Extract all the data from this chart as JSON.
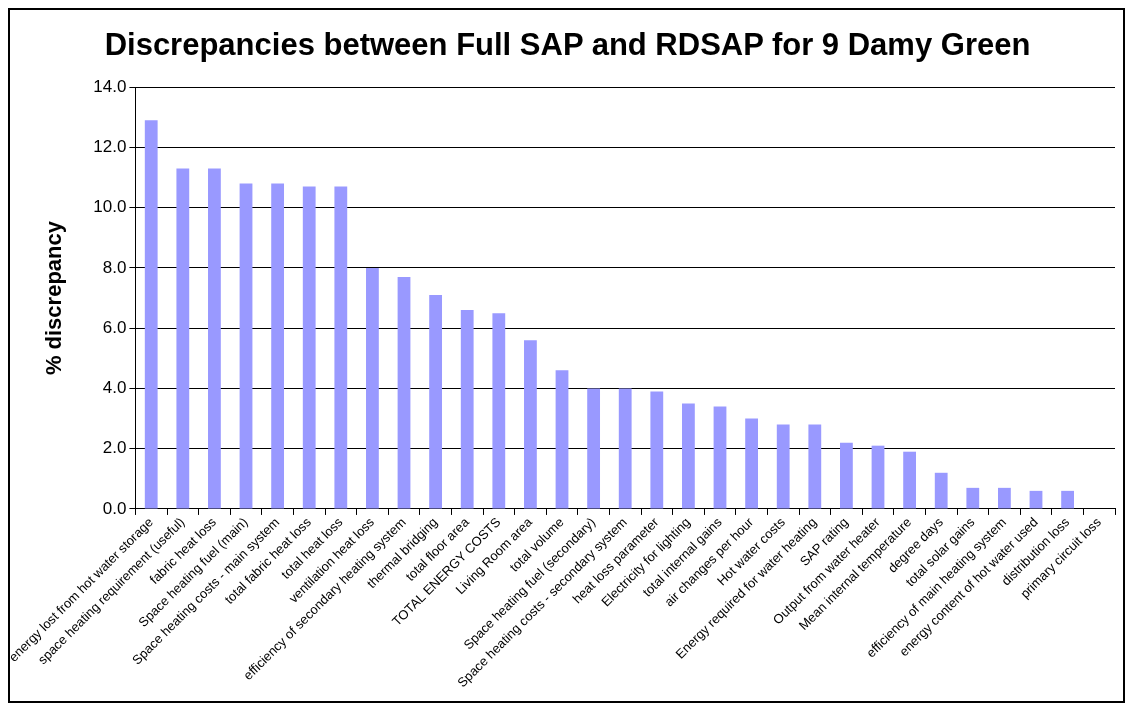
{
  "chart_data": {
    "type": "bar",
    "title": "Discrepancies between Full SAP and RDSAP for 9 Damy Green",
    "ylabel": "% discrepancy",
    "categories": [
      "energy lost from hot water storage",
      "space heating requirement (useful)",
      "fabric heat loss",
      "Space heating fuel (main)",
      "Space heating costs - main system",
      "total fabric heat loss",
      "total heat loss",
      "ventilation heat loss",
      "efficiency of secondary heating system",
      "thermal bridging",
      "total floor area",
      "TOTAL ENERGY COSTS",
      "Living Room area",
      "total volume",
      "Space heating fuel (secondary)",
      "Space heating costs - secondary system",
      "heat loss parameter",
      "Electricity for lighting",
      "total internal gains",
      "air changes per hour",
      "Hot water costs",
      "Energy required for water heating",
      "SAP rating",
      "Output from water heater",
      "Mean internal temperature",
      "degree days",
      "total solar gains",
      "efficiency of main heating system",
      "energy content of hot water used",
      "distribution loss",
      "primary circuit loss"
    ],
    "values": [
      12.9,
      11.3,
      11.3,
      10.8,
      10.8,
      10.7,
      10.7,
      8.0,
      7.7,
      7.1,
      6.6,
      6.5,
      5.6,
      4.6,
      4.0,
      4.0,
      3.9,
      3.5,
      3.4,
      3.0,
      2.8,
      2.8,
      2.2,
      2.1,
      1.9,
      1.2,
      0.7,
      0.7,
      0.6,
      0.6,
      0
    ],
    "color": "#9999ff",
    "ylim": [
      0,
      14
    ],
    "yticks": [
      {
        "value": 0,
        "label": "0.0"
      },
      {
        "value": 2,
        "label": "2.0"
      },
      {
        "value": 4,
        "label": "4.0"
      },
      {
        "value": 6,
        "label": "6.0"
      },
      {
        "value": 8,
        "label": "8.0"
      },
      {
        "value": 10,
        "label": "10.0"
      },
      {
        "value": 12,
        "label": "12.0"
      },
      {
        "value": 14,
        "label": "14.0"
      }
    ],
    "grid": "y"
  }
}
